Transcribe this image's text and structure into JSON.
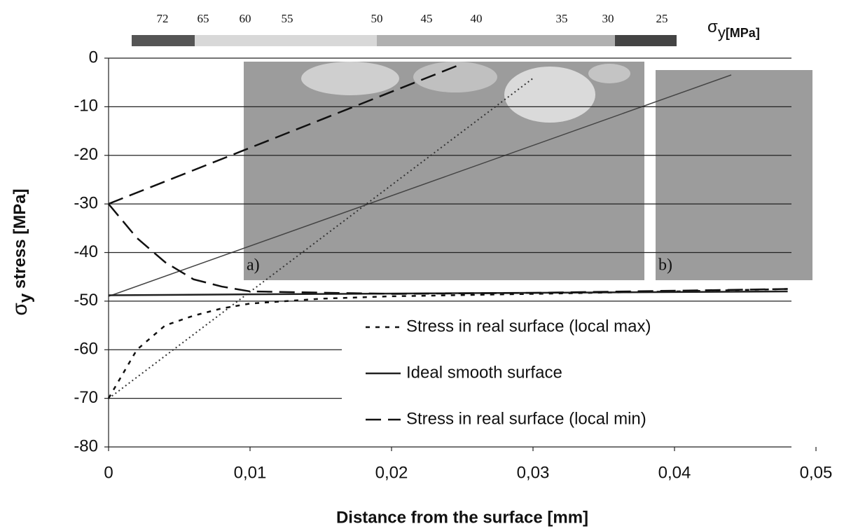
{
  "chart_data": {
    "type": "line",
    "x_label": "Distance from the surface [mm]",
    "y_label_symbol": "σ",
    "y_label_sub": "y",
    "y_label_rest": " stress [MPa]",
    "colorbar": {
      "labels": [
        72,
        65,
        60,
        55,
        50,
        45,
        40,
        35,
        30,
        25
      ],
      "symbol": "σ",
      "sub": "y",
      "unit": "[MPa]"
    },
    "annotations": [
      "a)",
      "b)"
    ],
    "xlim": [
      0,
      0.05
    ],
    "xticks": [
      0,
      {
        "value": 0.01,
        "label": "0,01"
      },
      {
        "value": 0.02,
        "label": "0,02"
      },
      {
        "value": 0.03,
        "label": "0,03"
      },
      {
        "value": 0.04,
        "label": "0,04"
      },
      {
        "value": 0.05,
        "label": "0,05"
      }
    ],
    "ylim": [
      -80,
      0
    ],
    "yticks": [
      0,
      -10,
      -20,
      -30,
      -40,
      -50,
      -60,
      -70,
      -80
    ],
    "grid": true,
    "series": [
      {
        "name": "Stress in real surface (local max)",
        "color": "#111111",
        "dash": "6,8",
        "x": [
          0,
          0.001,
          0.002,
          0.004,
          0.006,
          0.008,
          0.01,
          0.015,
          0.02,
          0.03,
          0.04,
          0.048
        ],
        "values": [
          -70,
          -65,
          -60,
          -55,
          -53,
          -51.5,
          -50.5,
          -49.5,
          -49,
          -48.5,
          -48,
          -47.5
        ]
      },
      {
        "name": "Ideal smooth surface",
        "color": "#222222",
        "dash": "",
        "x": [
          0,
          0.01,
          0.048
        ],
        "values": [
          -48.8,
          -48.6,
          -48
        ]
      },
      {
        "name": "Stress in real surface (local min)",
        "color": "#111111",
        "dash": "22,10",
        "x": [
          0,
          0.002,
          0.004,
          0.006,
          0.008,
          0.01,
          0.02,
          0.03,
          0.048
        ],
        "values": [
          -30,
          -37,
          -42,
          -45.5,
          -47,
          -48,
          -48.5,
          -48.3,
          -47.5
        ]
      }
    ]
  }
}
